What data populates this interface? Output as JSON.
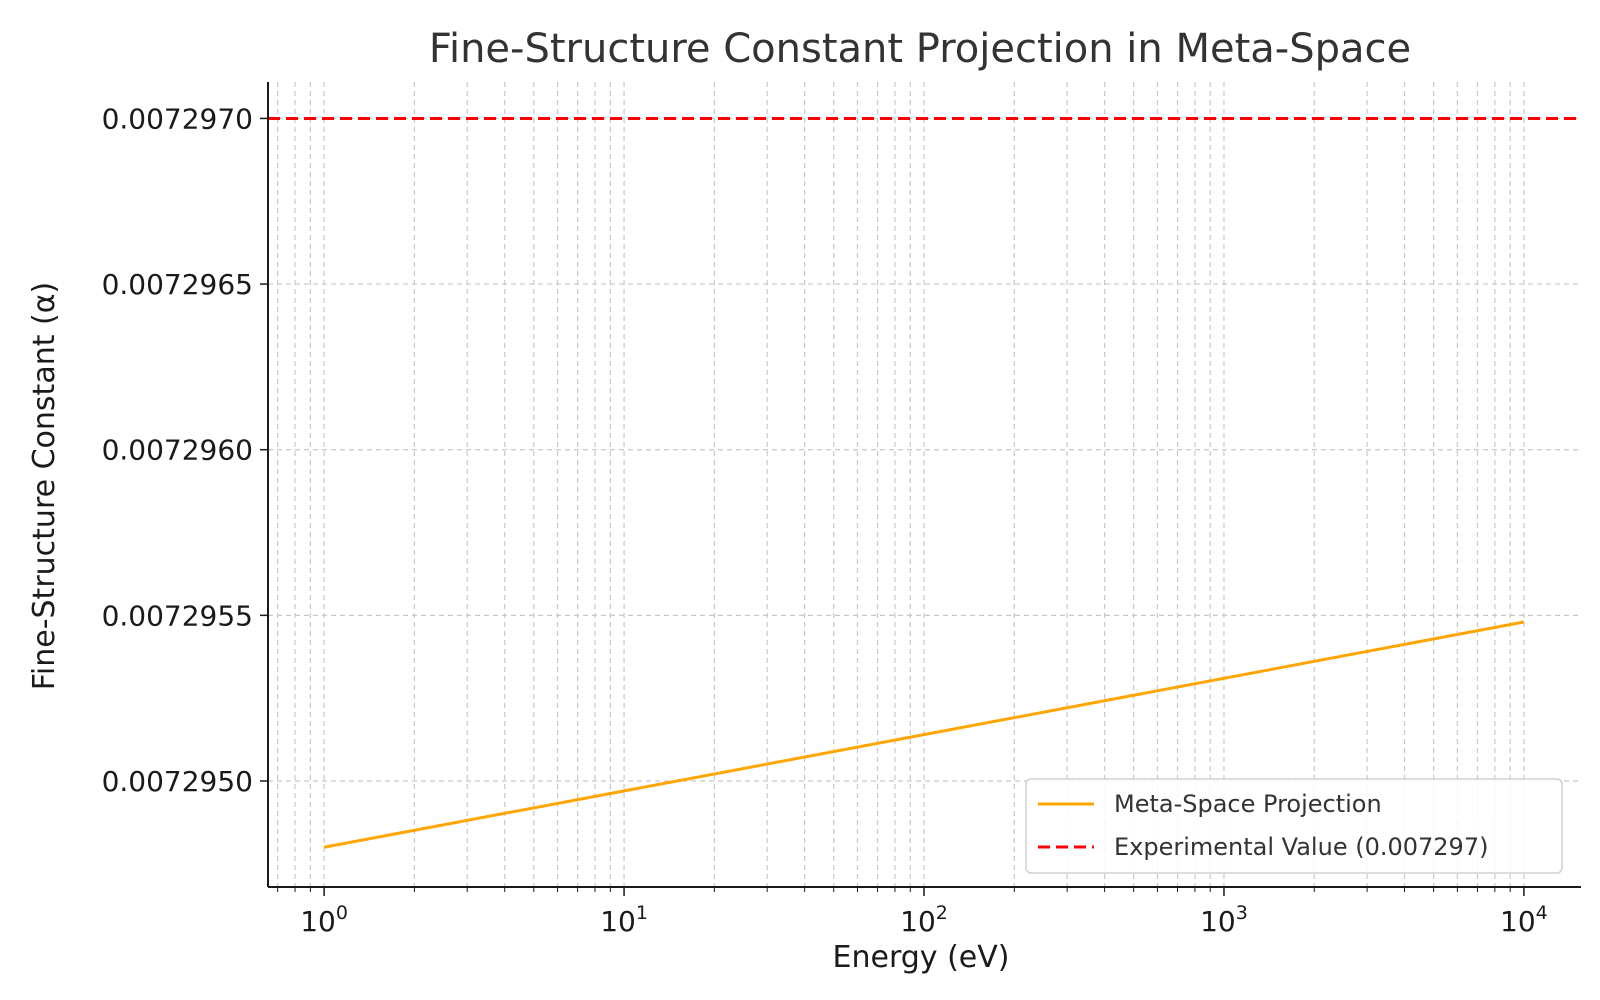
{
  "chart_data": {
    "type": "line",
    "title": "Fine-Structure Constant Projection in Meta-Space",
    "xlabel": "Energy (eV)",
    "ylabel": "Fine-Structure Constant (α)",
    "xscale": "log",
    "xlim": [
      0.65,
      15500
    ],
    "ylim": [
      0.00729468,
      0.00729711
    ],
    "x_ticks": [
      {
        "base": "10",
        "exp": "0",
        "value": 1
      },
      {
        "base": "10",
        "exp": "1",
        "value": 10
      },
      {
        "base": "10",
        "exp": "2",
        "value": 100
      },
      {
        "base": "10",
        "exp": "3",
        "value": 1000
      },
      {
        "base": "10",
        "exp": "4",
        "value": 10000
      }
    ],
    "y_ticks": [
      {
        "label": "0.0072950",
        "value": 0.007295
      },
      {
        "label": "0.0072955",
        "value": 0.0072955
      },
      {
        "label": "0.0072960",
        "value": 0.007296
      },
      {
        "label": "0.0072965",
        "value": 0.0072965
      },
      {
        "label": "0.0072970",
        "value": 0.007297
      }
    ],
    "grid": true,
    "legend_position": "lower-right",
    "series": [
      {
        "name": "Meta-Space Projection",
        "color": "#FFA500",
        "style": "solid",
        "x": [
          1,
          10000
        ],
        "y": [
          0.0072948,
          0.00729548
        ]
      },
      {
        "name": "Experimental Value (0.007297)",
        "color": "#FF0000",
        "style": "dashed",
        "type": "hline",
        "y": 0.007297
      }
    ]
  }
}
